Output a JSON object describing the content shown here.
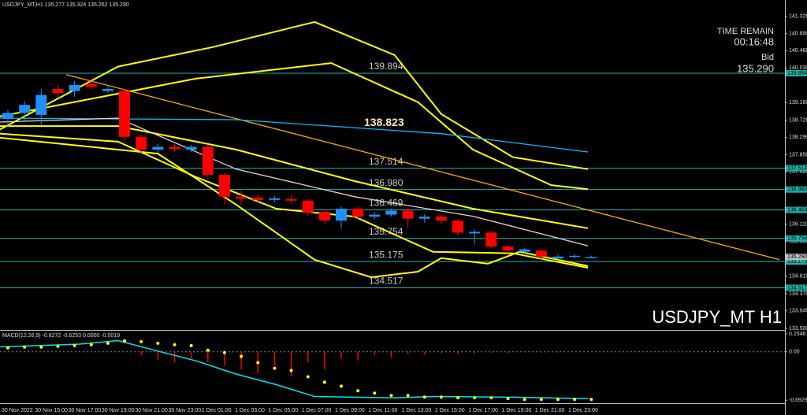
{
  "chart_data": [
    {
      "type": "candlestick",
      "title": "USDJPY_MT,H1  135.277 135.324 135.262 135.290",
      "watermark": "USDJPY_MT H1",
      "timer_label": "TIME REMAIN",
      "timer": "00:16:48",
      "bid_label": "Bid",
      "bid": {
        "value": 135.29,
        "label": "135.290"
      },
      "cursor_price": 138.823,
      "up_color": "#1e90ff",
      "down_color": "#ff0000",
      "level_color": "#20b2aa",
      "ylim": [
        133.48,
        141.73
      ],
      "yticks": [
        {
          "value": 141.32,
          "label": "141.320"
        },
        {
          "value": 140.89,
          "label": "140.890"
        },
        {
          "value": 140.46,
          "label": "140.460"
        },
        {
          "value": 140.03,
          "label": "140.030"
        },
        {
          "value": 139.16,
          "label": "139.160"
        },
        {
          "value": 138.72,
          "label": "138.720"
        },
        {
          "value": 138.29,
          "label": "138.290"
        },
        {
          "value": 137.85,
          "label": "137.850"
        },
        {
          "value": 137.42,
          "label": "137.420"
        },
        {
          "value": 136.11,
          "label": "136.110"
        },
        {
          "value": 135.68,
          "label": "135.680"
        },
        {
          "value": 134.81,
          "label": "134.810"
        },
        {
          "value": 134.37,
          "label": "134.370"
        },
        {
          "value": 133.94,
          "label": "133.940"
        },
        {
          "value": 133.5,
          "label": "133.500"
        }
      ],
      "levels": [
        139.894,
        137.514,
        {
          "value": 136.98,
          "label": "136.980"
        },
        136.469,
        135.754,
        135.175,
        134.517
      ],
      "categories": [
        "30 Nov 2022",
        null,
        "30 Nov 15:00",
        null,
        "30 Nov 17:00",
        null,
        "30 Nov 19:00",
        null,
        "30 Nov 21:00",
        null,
        "30 Nov 23:00",
        null,
        "1 Dec 01:00",
        null,
        "1 Dec 03:00",
        null,
        "1 Dec 05:00",
        null,
        "1 Dec 07:00",
        null,
        "1 Dec 09:00",
        null,
        "1 Dec 11:00",
        null,
        "1 Dec 13:00",
        null,
        "1 Dec 15:00",
        null,
        "1 Dec 17:00",
        null,
        "1 Dec 19:00",
        null,
        "1 Dec 21:00",
        null,
        "1 Dec 23:00",
        null
      ],
      "open": [
        138.75,
        138.9,
        138.85,
        139.5,
        139.45,
        139.62,
        139.45,
        139.45,
        138.3,
        137.98,
        138.05,
        137.98,
        138.05,
        137.35,
        136.8,
        136.78,
        136.72,
        136.74,
        136.7,
        136.42,
        136.2,
        136.5,
        136.3,
        136.35,
        136.45,
        136.25,
        136.3,
        136.2,
        135.88,
        135.9,
        135.55,
        135.42,
        135.45,
        135.25,
        135.3,
        135.277
      ],
      "high": [
        138.98,
        139.2,
        139.5,
        139.6,
        139.7,
        139.7,
        139.56,
        139.5,
        138.36,
        138.12,
        138.12,
        138.1,
        138.1,
        137.4,
        136.95,
        136.86,
        136.82,
        136.84,
        136.75,
        136.48,
        136.56,
        136.56,
        136.42,
        136.5,
        136.5,
        136.36,
        136.34,
        136.24,
        135.98,
        135.95,
        135.6,
        135.52,
        135.5,
        135.36,
        135.37,
        135.324
      ],
      "low": [
        138.55,
        138.7,
        138.6,
        139.3,
        139.3,
        139.48,
        139.4,
        138.2,
        137.9,
        137.9,
        137.94,
        137.92,
        137.25,
        136.6,
        136.6,
        136.64,
        136.66,
        136.62,
        136.32,
        136.1,
        136.0,
        136.24,
        136.24,
        136.3,
        136.0,
        136.15,
        136.1,
        135.8,
        135.6,
        135.5,
        135.38,
        135.38,
        135.22,
        135.22,
        135.26,
        135.262
      ],
      "close": [
        138.9,
        139.1,
        139.35,
        139.4,
        139.6,
        139.55,
        139.5,
        138.3,
        137.98,
        138.05,
        138.0,
        138.05,
        137.35,
        136.8,
        136.75,
        136.72,
        136.76,
        136.7,
        136.4,
        136.2,
        136.5,
        136.3,
        136.35,
        136.45,
        136.25,
        136.3,
        136.2,
        135.9,
        135.92,
        135.55,
        135.45,
        135.48,
        135.3,
        135.3,
        135.32,
        135.29
      ],
      "lines": [
        {
          "color": "#ffff00",
          "x": [
            -0.5,
            6.6,
            12.3,
            18.4,
            23.2,
            26,
            30.3,
            34.8
          ],
          "values": [
            138.48,
            140.06,
            140.55,
            141.18,
            140.35,
            138.87,
            137.79,
            137.49
          ]
        },
        {
          "color": "#ffff00",
          "x": [
            -0.5,
            11.3,
            19.4,
            24.6,
            27.9,
            32.6,
            34.8
          ],
          "values": [
            138.81,
            139.76,
            140.15,
            139.17,
            137.98,
            137.09,
            136.99
          ]
        },
        {
          "color": "#ffff00",
          "x": [
            -0.5,
            6.6,
            13.7,
            20.8,
            27.9,
            34.8
          ],
          "values": [
            138.57,
            138.57,
            137.98,
            137.19,
            136.5,
            136.01
          ]
        },
        {
          "color": "#ffff00",
          "x": [
            -0.5,
            6.6,
            11.3,
            16.1,
            20.8,
            25.5,
            30.3,
            34.8
          ],
          "values": [
            138.38,
            138.18,
            137.29,
            136.5,
            136.3,
            135.42,
            135.38,
            135.02
          ]
        },
        {
          "color": "#ffff00",
          "x": [
            -0.5,
            9.0,
            13.7,
            18.4,
            21.8,
            24.6,
            26,
            28.8,
            30.7,
            34.8
          ],
          "values": [
            138.28,
            137.88,
            136.6,
            135.22,
            134.78,
            134.92,
            135.26,
            135.12,
            135.42,
            135.06
          ]
        },
        {
          "color": "#ffa500",
          "x": [
            3.5,
            46.3
          ],
          "values": [
            139.86,
            135.22
          ]
        },
        {
          "color": "#00bfff",
          "x": [
            -0.5,
            13.7,
            26,
            34.8
          ],
          "values": [
            138.77,
            138.73,
            138.38,
            137.92
          ]
        },
        {
          "color": "#f0d0d0",
          "x": [
            -0.5,
            6.6,
            13.7,
            20.8,
            27.9,
            34.8
          ],
          "values": [
            138.67,
            138.77,
            137.49,
            136.8,
            136.31,
            135.57
          ]
        }
      ]
    },
    {
      "type": "macd",
      "title": "MACD(12,26,9) -0.6272 -0.6253 0.0000 -0.0019",
      "ylim": [
        -0.905,
        0.29
      ],
      "yticks": [
        0.2546,
        {
          "value": 0,
          "label": "0.00"
        },
        -0.6929
      ],
      "histogram_color": "#ff0000",
      "line_color": "#00e5ee",
      "signal_color": "#ffff00",
      "histogram": [
        0,
        0,
        0,
        0,
        0,
        0,
        0,
        0,
        -0.05,
        -0.12,
        -0.15,
        -0.1,
        -0.15,
        -0.2,
        -0.25,
        -0.3,
        -0.2,
        -0.35,
        -0.15,
        -0.25,
        -0.1,
        -0.12,
        -0.05,
        -0.08,
        -0.03,
        -0.04,
        -0.02,
        -0.03,
        -0.02,
        -0.01,
        -0.02,
        -0.01,
        -0.01,
        -0.01,
        0,
        0
      ],
      "line_x": [
        -0.5,
        4.3,
        6.6,
        9.0,
        11.3,
        13.7,
        16.1,
        18.4,
        23.2,
        25.5,
        30.3,
        34.8
      ],
      "line": [
        0.07,
        0.11,
        0.16,
        0.01,
        -0.13,
        -0.32,
        -0.47,
        -0.64,
        -0.66,
        -0.64,
        -0.65,
        -0.67
      ],
      "signal": [
        0.056,
        0.067,
        0.067,
        0.078,
        0.089,
        0.101,
        0.123,
        0.156,
        0.145,
        0.123,
        0.101,
        0.089,
        0.022,
        -0.011,
        -0.067,
        -0.156,
        -0.235,
        -0.268,
        -0.358,
        -0.436,
        -0.492,
        -0.559,
        -0.592,
        -0.626,
        -0.626,
        -0.648,
        -0.648,
        -0.659,
        -0.659,
        -0.659,
        -0.67,
        -0.682,
        -0.682,
        -0.682,
        -0.682,
        -0.682
      ]
    }
  ]
}
